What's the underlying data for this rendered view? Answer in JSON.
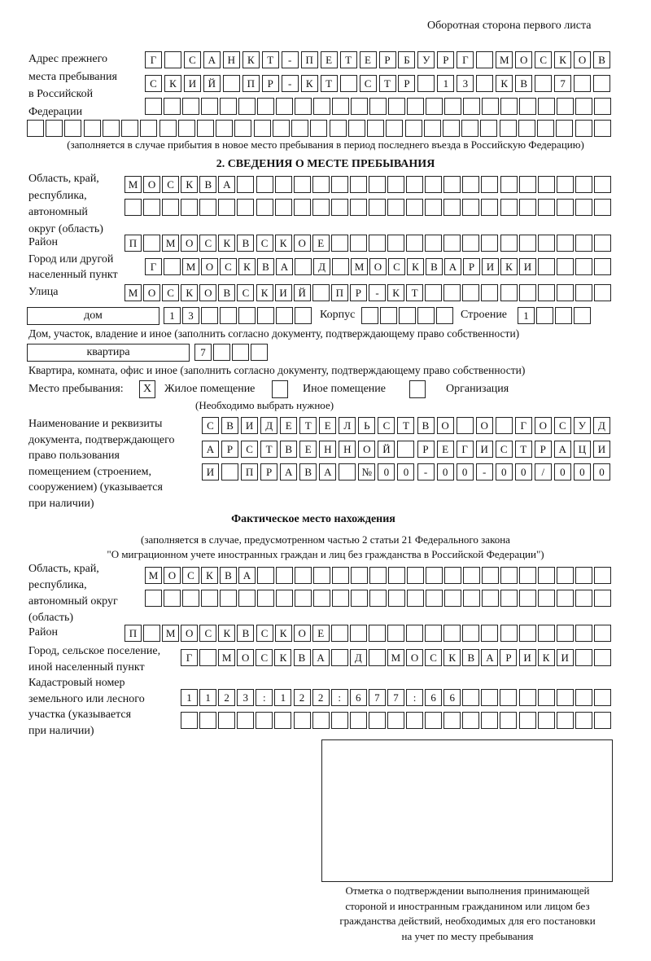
{
  "header": "Оборотная сторона первого листа",
  "previous_address": {
    "label": [
      "Адрес прежнего",
      "места пребывания",
      "в Российской",
      "Федерации"
    ],
    "rows": [
      "Г САНКТ-ПЕТЕРБУРГ МОСКОВ",
      "СКИЙ ПР-КТ СТР 13 КВ 7  ",
      "                         ",
      "                               "
    ],
    "note": "(заполняется в случае прибытия в новое место пребывания в период последнего въезда в Российскую Федерацию)"
  },
  "section2": {
    "title": "2. СВЕДЕНИЯ О МЕСТЕ ПРЕБЫВАНИЯ",
    "region_label": [
      "Область, край,",
      "республика,",
      "автономный",
      "округ (область)"
    ],
    "region_rows": [
      "МОСКВА                    ",
      "                          "
    ],
    "district_label": "Район",
    "district_row": "П МОСКВСКОЕ               ",
    "city_label": [
      "Город или другой",
      "населенный пункт"
    ],
    "city_row": "Г МОСКВА Д МОСКВАРИКИ    ",
    "street_label": "Улица",
    "street_row": "МОСКОВСКИЙ ПР-КТ          ",
    "house_type": "дом",
    "house_row": "13      ",
    "korpus_label": "Корпус",
    "korpus_row": "     ",
    "building_label": "Строение",
    "building_row": "1   ",
    "house_note": "Дом, участок, владение и иное (заполнить согласно документу, подтверждающему право собственности)",
    "flat_type": "квартира",
    "flat_row": "7   ",
    "flat_note": "Квартира, комната, офис и иное (заполнить согласно документу, подтверждающему право собственности)",
    "stay_label": "Место пребывания:",
    "stay_options": [
      {
        "mark": "X",
        "label": "Жилое помещение"
      },
      {
        "mark": "",
        "label": "Иное помещение"
      },
      {
        "mark": "",
        "label": "Организация"
      }
    ],
    "stay_note": "(Необходимо выбрать нужное)",
    "doc_label": [
      "Наименование и реквизиты",
      "документа, подтверждающего",
      "право пользования",
      "помещением (строением,",
      "сооружением) (указывается",
      "при наличии)"
    ],
    "doc_rows": [
      "СВИДЕТЕЛЬСТВО О ГОСУД",
      "АРСТВЕННОЙ РЕГИСТРАЦИ",
      "И ПРАВА №00-00-00/000"
    ]
  },
  "actual": {
    "title": "Фактическое место нахождения",
    "note": [
      "(заполняется в случае, предусмотренном частью 2 статьи 21 Федерального закона",
      "\"О миграционном учете иностранных граждан и лиц без гражданства в Российской Федерации\")"
    ],
    "region_label": [
      "Область, край,",
      "республика,",
      "автономный округ",
      "(область)"
    ],
    "region_rows": [
      "МОСКВА                   ",
      "                         "
    ],
    "district_label": "Район",
    "district_row": "П МОСКВСКОЕ               ",
    "city_label": [
      "Город, сельское поселение,",
      "иной населенный пункт"
    ],
    "city_row": "Г МОСКВА Д МОСКВАРИКИ  ",
    "cadastral_label": [
      "Кадастровый номер",
      "земельного или лесного",
      "участка (указывается",
      "при наличии)"
    ],
    "cadastral_rows": [
      "1123:122:677:66        ",
      "                       "
    ]
  },
  "stamp_caption": [
    "Отметка о подтверждении выполнения принимающей",
    "стороной и иностранным гражданином или лицом без",
    "гражданства действий, необходимых для его постановки",
    "на учет по месту пребывания"
  ]
}
